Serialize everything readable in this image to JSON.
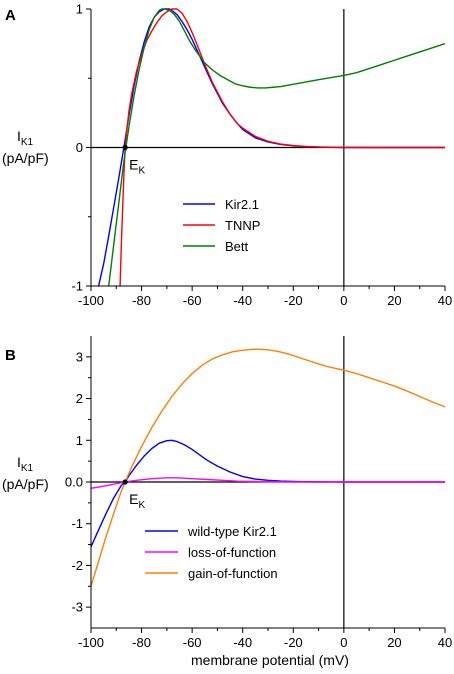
{
  "xlabel": "membrane potential (mV)",
  "chart_data": [
    {
      "panel": "A",
      "type": "line",
      "ylabel_main": "I",
      "ylabel_sub": "K1",
      "ylabel_unit": "(pA/pF)",
      "xlim": [
        -100,
        40
      ],
      "ylim": [
        -1,
        1
      ],
      "x_ticks": [
        -100,
        -80,
        -60,
        -40,
        -20,
        0,
        20,
        40
      ],
      "y_ticks": [
        -1,
        0,
        1
      ],
      "x_tick_labels": [
        "-100",
        "-80",
        "-60",
        "-40",
        "-20",
        "0",
        "20",
        "40"
      ],
      "y_tick_labels": [
        "-1",
        "0",
        "1"
      ],
      "grid": false,
      "reference_lines": {
        "y": 0,
        "x": 0
      },
      "legend_position": "center",
      "annotation": {
        "main": "E",
        "sub": "K",
        "x": -86.5,
        "y": 0
      },
      "series": [
        {
          "name": "Kir2.1",
          "color": "#0000ff",
          "x": [
            -97,
            -95,
            -93,
            -91,
            -89,
            -87,
            -85,
            -83,
            -81,
            -79,
            -77,
            -75,
            -73,
            -71,
            -69,
            -68,
            -66,
            -64,
            -62,
            -60,
            -58,
            -55,
            -52,
            -50,
            -48,
            -45,
            -42,
            -40,
            -35,
            -30,
            -25,
            -20,
            -15,
            -10,
            -5,
            0,
            10,
            20,
            30,
            40
          ],
          "y": [
            -1.0,
            -0.84,
            -0.64,
            -0.43,
            -0.22,
            0.0,
            0.23,
            0.44,
            0.62,
            0.76,
            0.87,
            0.94,
            0.98,
            1.0,
            1.0,
            0.99,
            0.96,
            0.91,
            0.85,
            0.78,
            0.7,
            0.58,
            0.46,
            0.39,
            0.32,
            0.24,
            0.17,
            0.13,
            0.07,
            0.04,
            0.022,
            0.012,
            0.006,
            0.003,
            0.001,
            0.0,
            0.0,
            0.0,
            0.0,
            0.0
          ]
        },
        {
          "name": "TNNP",
          "color": "#ff0000",
          "x": [
            -88.5,
            -88,
            -87.5,
            -87,
            -86.5,
            -86,
            -85,
            -84,
            -82,
            -80,
            -78,
            -76,
            -74,
            -72,
            -70,
            -68,
            -66,
            -64,
            -62,
            -60,
            -58,
            -55,
            -52,
            -50,
            -48,
            -45,
            -42,
            -40,
            -35,
            -30,
            -25,
            -20,
            -15,
            -10,
            -5,
            0,
            10,
            20,
            30,
            40
          ],
          "y": [
            -1.0,
            -0.7,
            -0.45,
            -0.2,
            0.0,
            0.1,
            0.26,
            0.38,
            0.55,
            0.67,
            0.77,
            0.84,
            0.9,
            0.95,
            0.98,
            1.0,
            1.0,
            0.97,
            0.91,
            0.83,
            0.74,
            0.6,
            0.47,
            0.4,
            0.33,
            0.24,
            0.17,
            0.14,
            0.08,
            0.045,
            0.025,
            0.014,
            0.008,
            0.004,
            0.002,
            0.001,
            0.0,
            0.0,
            0.0,
            0.0
          ]
        },
        {
          "name": "Bett",
          "color": "#008000",
          "x": [
            -93,
            -91,
            -89,
            -87,
            -85,
            -83,
            -81,
            -79,
            -77,
            -75,
            -73,
            -72,
            -71,
            -69,
            -67,
            -65,
            -63,
            -61,
            -59,
            -57,
            -55,
            -52,
            -49,
            -46,
            -43,
            -40,
            -37,
            -34,
            -31,
            -28,
            -25,
            -22,
            -19,
            -16,
            -13,
            -10,
            -5,
            0,
            5,
            10,
            15,
            20,
            25,
            30,
            35,
            40
          ],
          "y": [
            -1.0,
            -0.7,
            -0.4,
            -0.1,
            0.15,
            0.37,
            0.56,
            0.72,
            0.85,
            0.94,
            0.99,
            1.0,
            1.0,
            0.99,
            0.96,
            0.91,
            0.84,
            0.77,
            0.71,
            0.66,
            0.61,
            0.56,
            0.52,
            0.49,
            0.46,
            0.445,
            0.435,
            0.43,
            0.43,
            0.435,
            0.44,
            0.45,
            0.46,
            0.47,
            0.48,
            0.49,
            0.505,
            0.52,
            0.54,
            0.57,
            0.6,
            0.63,
            0.66,
            0.69,
            0.72,
            0.75
          ]
        }
      ]
    },
    {
      "panel": "B",
      "type": "line",
      "ylabel_main": "I",
      "ylabel_sub": "K1",
      "ylabel_unit": "(pA/pF)",
      "xlim": [
        -100,
        40
      ],
      "ylim": [
        -3.5,
        3.5
      ],
      "x_ticks": [
        -100,
        -80,
        -60,
        -40,
        -20,
        0,
        20,
        40
      ],
      "y_ticks": [
        -3,
        -2,
        -1,
        0,
        1,
        2,
        3
      ],
      "x_tick_labels": [
        "-100",
        "-80",
        "-60",
        "-40",
        "-20",
        "0",
        "20",
        "40"
      ],
      "y_tick_labels": [
        "-3",
        "-2",
        "-1",
        "0.0",
        "1",
        "2",
        "3"
      ],
      "grid": false,
      "reference_lines": {
        "y": 0,
        "x": 0
      },
      "legend_position": "bottom-center",
      "annotation": {
        "main": "E",
        "sub": "K",
        "x": -86.5,
        "y": 0
      },
      "series": [
        {
          "name": "wild-type Kir2.1",
          "color": "#0000ff",
          "x": [
            -100,
            -97,
            -94,
            -91,
            -88,
            -86.5,
            -85,
            -82,
            -79,
            -76,
            -73,
            -70,
            -68,
            -66,
            -63,
            -60,
            -57,
            -54,
            -50,
            -45,
            -40,
            -35,
            -30,
            -25,
            -20,
            -15,
            -10,
            -5,
            0,
            10,
            20,
            30,
            40
          ],
          "y": [
            -1.55,
            -1.15,
            -0.75,
            -0.38,
            -0.08,
            0.0,
            0.15,
            0.4,
            0.62,
            0.8,
            0.93,
            0.99,
            1.0,
            0.97,
            0.89,
            0.78,
            0.65,
            0.52,
            0.38,
            0.24,
            0.13,
            0.07,
            0.04,
            0.022,
            0.012,
            0.006,
            0.003,
            0.001,
            0.0,
            0.0,
            0.0,
            0.0,
            0.0
          ]
        },
        {
          "name": "loss-of-function",
          "color": "#ff00ff",
          "x": [
            -100,
            -95,
            -90,
            -86.5,
            -82,
            -76,
            -70,
            -66,
            -60,
            -54,
            -48,
            -42,
            -36,
            -30,
            -20,
            -10,
            0,
            10,
            20,
            30,
            40
          ],
          "y": [
            -0.15,
            -0.1,
            -0.04,
            0.0,
            0.04,
            0.08,
            0.1,
            0.1,
            0.08,
            0.06,
            0.04,
            0.02,
            0.012,
            0.006,
            0.002,
            0.0,
            0.0,
            0.0,
            0.0,
            0.0,
            0.0
          ]
        },
        {
          "name": "gain-of-function",
          "color": "#ff8000",
          "x": [
            -100,
            -97,
            -94,
            -91,
            -88,
            -86.5,
            -84,
            -80,
            -76,
            -72,
            -68,
            -64,
            -60,
            -56,
            -52,
            -48,
            -44,
            -40,
            -36,
            -33,
            -30,
            -26,
            -22,
            -18,
            -14,
            -10,
            -6,
            -3,
            0,
            5,
            10,
            15,
            20,
            25,
            30,
            35,
            40
          ],
          "y": [
            -2.5,
            -1.9,
            -1.3,
            -0.75,
            -0.22,
            0.0,
            0.35,
            0.85,
            1.3,
            1.7,
            2.05,
            2.35,
            2.6,
            2.8,
            2.95,
            3.05,
            3.12,
            3.16,
            3.18,
            3.18,
            3.17,
            3.13,
            3.07,
            2.99,
            2.91,
            2.83,
            2.76,
            2.72,
            2.68,
            2.6,
            2.5,
            2.4,
            2.3,
            2.18,
            2.05,
            1.92,
            1.8
          ]
        }
      ]
    }
  ]
}
